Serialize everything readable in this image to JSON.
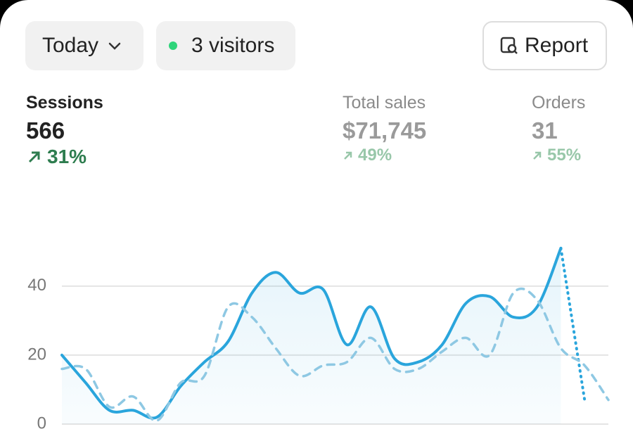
{
  "toolbar": {
    "date_range": "Today",
    "visitors": "3 visitors",
    "report": "Report"
  },
  "metrics": [
    {
      "label": "Sessions",
      "value": "566",
      "change": "31%"
    },
    {
      "label": "Total sales",
      "value": "$71,745",
      "change": "49%"
    },
    {
      "label": "Orders",
      "value": "31",
      "change": "55%"
    }
  ],
  "chart_data": {
    "type": "line",
    "categories": [
      null,
      null,
      null,
      null,
      null,
      null,
      null,
      null,
      null,
      null,
      null,
      null,
      null,
      null,
      null,
      null,
      null,
      null,
      null,
      null,
      null,
      null,
      null,
      null
    ],
    "series": [
      {
        "color": "#2aa5dc",
        "style": "solid",
        "area": true,
        "values": [
          20,
          12,
          4,
          4,
          2,
          11,
          18,
          24,
          38,
          44,
          38,
          39,
          23,
          34,
          19,
          18,
          23,
          35,
          37,
          31,
          34,
          51,
          null,
          null
        ]
      },
      {
        "color": "#2aa5dc",
        "style": "dotted",
        "area": false,
        "values": [
          null,
          null,
          null,
          null,
          null,
          null,
          null,
          null,
          null,
          null,
          null,
          null,
          null,
          null,
          null,
          null,
          null,
          null,
          null,
          null,
          null,
          51,
          7,
          null
        ]
      },
      {
        "color": "#8ec8e3",
        "style": "dashed",
        "area": false,
        "values": [
          16,
          16,
          5,
          8,
          1,
          12,
          14,
          34,
          31,
          22,
          14,
          17,
          18,
          25,
          16,
          16,
          21,
          25,
          20,
          38,
          36,
          22,
          17,
          7
        ]
      }
    ],
    "ylim": [
      0,
      52
    ],
    "yticks": [
      0,
      20,
      40
    ],
    "grid": true
  }
}
